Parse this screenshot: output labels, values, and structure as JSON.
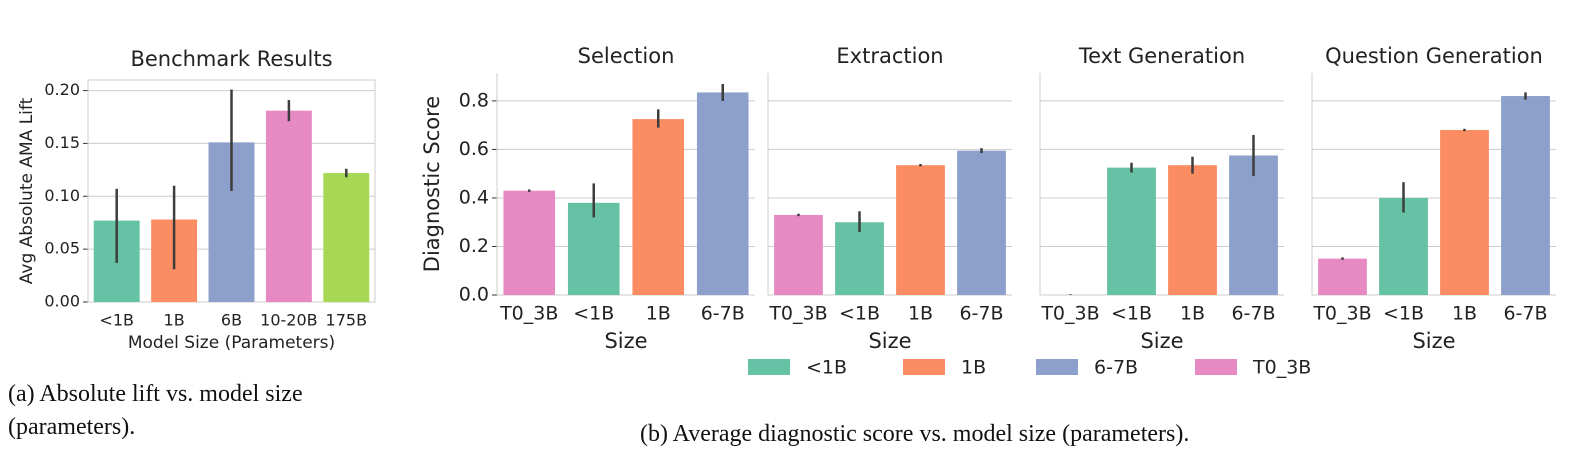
{
  "chart_data": [
    {
      "type": "bar",
      "title": "Benchmark Results",
      "xlabel": "Model Size (Parameters)",
      "ylabel": "Avg Absolute AMA Lift",
      "categories": [
        "<1B",
        "1B",
        "6B",
        "10-20B",
        "175B"
      ],
      "values": [
        0.077,
        0.078,
        0.151,
        0.181,
        0.122
      ],
      "ci_low": [
        0.037,
        0.031,
        0.105,
        0.171,
        0.118
      ],
      "ci_high": [
        0.107,
        0.11,
        0.201,
        0.191,
        0.126
      ],
      "colors": [
        "#66c2a5",
        "#fc8d62",
        "#8da0cb",
        "#e78ac3",
        "#a6d854"
      ],
      "ylim": [
        0,
        0.21
      ],
      "yticks": [
        {
          "value": 0,
          "label": "0.00"
        },
        0.05,
        {
          "value": 0.1,
          "label": "0.10"
        },
        0.15,
        {
          "value": 0.2,
          "label": "0.20"
        }
      ],
      "grid": true
    },
    {
      "type": "bar",
      "title": "Selection",
      "xlabel": "Size",
      "ylabel": "Diagnostic Score",
      "categories": [
        "T0_3B",
        "<1B",
        "1B",
        "6-7B"
      ],
      "values": [
        0.43,
        0.38,
        0.725,
        0.835
      ],
      "ci_low": [
        0.425,
        0.32,
        0.69,
        0.8
      ],
      "ci_high": [
        0.435,
        0.46,
        0.765,
        0.87
      ],
      "colors": [
        "#e78ac3",
        "#66c2a5",
        "#fc8d62",
        "#8da0cb"
      ],
      "ylim": [
        0,
        0.915
      ],
      "yticks": [
        {
          "value": 0,
          "label": "0.0"
        },
        0.2,
        0.4,
        0.6,
        0.8
      ],
      "grid": true
    },
    {
      "type": "bar",
      "title": "Extraction",
      "xlabel": "Size",
      "categories": [
        "T0_3B",
        "<1B",
        "1B",
        "6-7B"
      ],
      "values": [
        0.33,
        0.3,
        0.535,
        0.595
      ],
      "ci_low": [
        0.325,
        0.26,
        0.53,
        0.585
      ],
      "ci_high": [
        0.335,
        0.345,
        0.54,
        0.605
      ],
      "colors": [
        "#e78ac3",
        "#66c2a5",
        "#fc8d62",
        "#8da0cb"
      ],
      "ylim": [
        0,
        0.915
      ],
      "grid": true
    },
    {
      "type": "bar",
      "title": "Text Generation",
      "xlabel": "Size",
      "categories": [
        "T0_3B",
        "<1B",
        "1B",
        "6-7B"
      ],
      "values": [
        0.0,
        0.525,
        0.535,
        0.575
      ],
      "ci_low": [
        0.0,
        0.505,
        0.5,
        0.49
      ],
      "ci_high": [
        0.003,
        0.545,
        0.57,
        0.66
      ],
      "colors": [
        "#e78ac3",
        "#66c2a5",
        "#fc8d62",
        "#8da0cb"
      ],
      "ylim": [
        0,
        0.915
      ],
      "grid": true
    },
    {
      "type": "bar",
      "title": "Question Generation",
      "xlabel": "Size",
      "categories": [
        "T0_3B",
        "<1B",
        "1B",
        "6-7B"
      ],
      "values": [
        0.15,
        0.4,
        0.68,
        0.82
      ],
      "ci_low": [
        0.145,
        0.34,
        0.675,
        0.805
      ],
      "ci_high": [
        0.155,
        0.465,
        0.685,
        0.835
      ],
      "colors": [
        "#e78ac3",
        "#66c2a5",
        "#fc8d62",
        "#8da0cb"
      ],
      "ylim": [
        0,
        0.915
      ],
      "grid": true
    }
  ],
  "legend": [
    {
      "name": "<1B",
      "color": "#66c2a5"
    },
    {
      "name": "1B",
      "color": "#fc8d62"
    },
    {
      "name": "6-7B",
      "color": "#8da0cb"
    },
    {
      "name": "T0_3B",
      "color": "#e78ac3"
    }
  ],
  "captions": [
    "(a) Absolute lift vs. model size (parameters).",
    "(b) Average diagnostic score vs. model size (parameters)."
  ]
}
